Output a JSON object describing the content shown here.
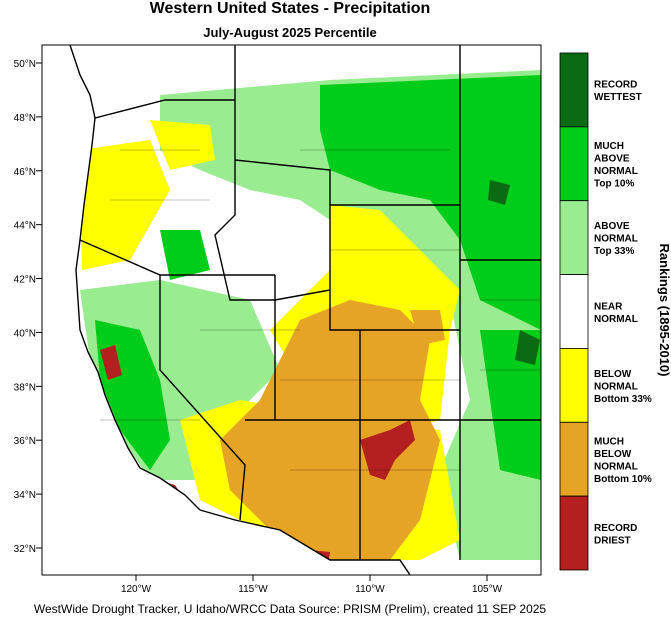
{
  "header": {
    "title": "Western United States - Precipitation",
    "subtitle": "July-August 2025 Percentile"
  },
  "map": {
    "lat_labels": [
      "50°N",
      "48°N",
      "46°N",
      "44°N",
      "42°N",
      "40°N",
      "38°N",
      "36°N",
      "34°N",
      "32°N"
    ],
    "lon_labels": [
      "120°W",
      "115°W",
      "110°W",
      "105°W"
    ]
  },
  "legend": {
    "title": "Rankings (1895-2010)",
    "items": [
      {
        "lines": [
          "RECORD",
          "WETTEST"
        ],
        "color": "#0b6b12"
      },
      {
        "lines": [
          "MUCH",
          "ABOVE",
          "NORMAL",
          "Top 10%"
        ],
        "color": "#00cc1a"
      },
      {
        "lines": [
          "ABOVE",
          "NORMAL",
          "Top 33%"
        ],
        "color": "#99ec8f"
      },
      {
        "lines": [
          "NEAR",
          "NORMAL"
        ],
        "color": "#ffffff"
      },
      {
        "lines": [
          "BELOW",
          "NORMAL",
          "Bottom 33%"
        ],
        "color": "#ffff00"
      },
      {
        "lines": [
          "MUCH",
          "BELOW",
          "NORMAL",
          "Bottom 10%"
        ],
        "color": "#e5a425"
      },
      {
        "lines": [
          "RECORD",
          "DRIEST"
        ],
        "color": "#b3201f"
      }
    ]
  },
  "footer": "WestWide Drought Tracker, U Idaho/WRCC Data Source: PRISM (Prelim), created 11 SEP 2025"
}
